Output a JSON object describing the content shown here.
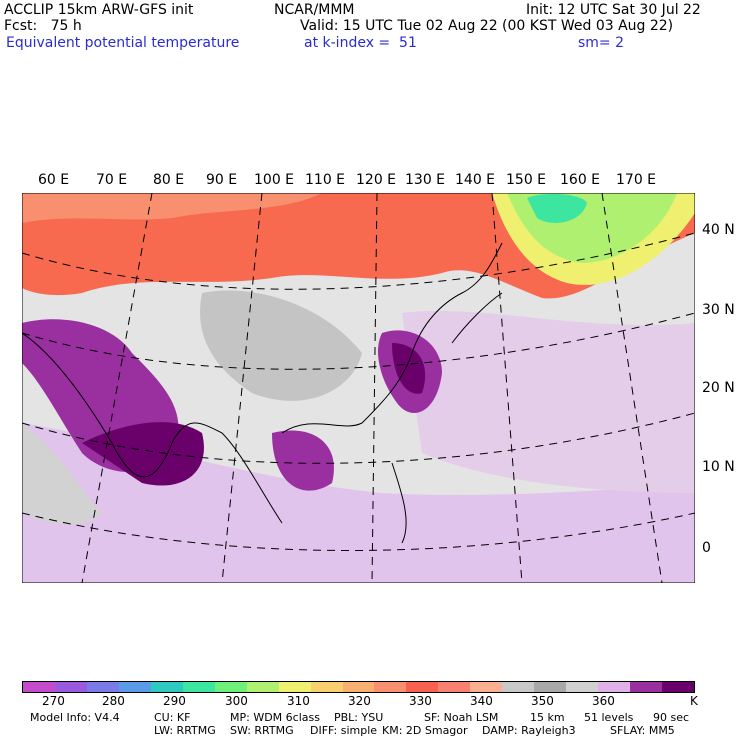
{
  "header": {
    "line1_left": "ACCLIP 15km ARW-GFS init",
    "line1_center": "NCAR/MMM",
    "line1_right": "Init: 12 UTC Sat 30 Jul 22",
    "line2_left": "Fcst:   75 h",
    "line2_right": "Valid: 15 UTC Tue 02 Aug 22 (00 KST Wed 03 Aug 22)",
    "line3_left": "Equivalent potential temperature",
    "line3_center": "at k-index =  51",
    "line3_right": "sm= 2"
  },
  "map": {
    "lon_labels": [
      "60 E",
      "70 E",
      "80 E",
      "90 E",
      "100 E",
      "110 E",
      "120 E",
      "130 E",
      "140 E",
      "150 E",
      "160 E",
      "170 E"
    ],
    "lat_labels": [
      "40 N",
      "30 N",
      "20 N",
      "10 N",
      "0"
    ]
  },
  "colorbar": {
    "colors": [
      "#c44ccc",
      "#9a5ae0",
      "#7b7be8",
      "#5a9ae8",
      "#2ec9c0",
      "#3ce6a0",
      "#6ef07a",
      "#b0f070",
      "#f0f070",
      "#f8d070",
      "#f8b070",
      "#f89070",
      "#f86050",
      "#f88070",
      "#f8b090",
      "#c8c8c8",
      "#a8a8a8",
      "#d0d0d0",
      "#e0b0e8",
      "#9a30a0",
      "#6a006a"
    ],
    "labels": [
      "270",
      "280",
      "290",
      "300",
      "310",
      "320",
      "330",
      "340",
      "350",
      "360",
      "K"
    ]
  },
  "footer": {
    "line1": [
      "Model Info: V4.4",
      "CU: KF",
      "MP: WDM 6class",
      "PBL: YSU",
      "SF: Noah LSM",
      "15 km",
      "51 levels",
      "90 sec"
    ],
    "line2": [
      "LW: RRTMG",
      "SW: RRTMG",
      "DIFF: simple",
      "KM: 2D Smagor",
      "DAMP: Rayleigh3",
      "SFLAY: MM5"
    ]
  }
}
